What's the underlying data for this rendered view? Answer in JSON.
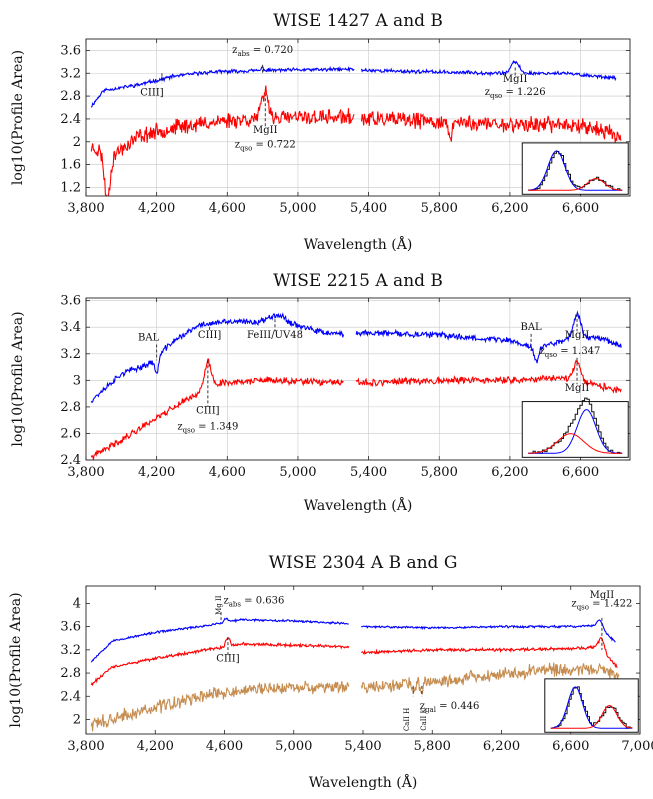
{
  "chart_data": [
    {
      "type": "line",
      "title": "WISE 1427 A and B",
      "xlabel": "Wavelength (Å)",
      "ylabel": "log10(Profile Area)",
      "xlim": [
        3800,
        6880
      ],
      "ylim": [
        1.05,
        3.8
      ],
      "xticks": [
        3800,
        4200,
        4600,
        5000,
        5400,
        5800,
        6200,
        6600
      ],
      "xtick_labels": [
        "3,800",
        "4,200",
        "4,600",
        "5,000",
        "5,400",
        "5,800",
        "6,200",
        "6,600"
      ],
      "yticks": [
        1.2,
        1.6,
        2.0,
        2.4,
        2.8,
        3.2,
        3.6
      ],
      "ytick_labels": [
        "1.2",
        "1.6",
        "2",
        "2.4",
        "2.8",
        "3.2",
        "3.6"
      ],
      "grid": true,
      "gap": [
        5320,
        5360
      ],
      "series": [
        {
          "color": "#0000ff",
          "noise": 0.025,
          "seed": 11,
          "baseline": [
            [
              3830,
              2.62
            ],
            [
              3900,
              2.9
            ],
            [
              4100,
              3.0
            ],
            [
              4300,
              3.15
            ],
            [
              4500,
              3.22
            ],
            [
              4800,
              3.25
            ],
            [
              5300,
              3.27
            ],
            [
              5400,
              3.25
            ],
            [
              5800,
              3.22
            ],
            [
              6200,
              3.2
            ],
            [
              6500,
              3.2
            ],
            [
              6800,
              3.12
            ]
          ],
          "peaks": [
            [
              6230,
              0.2,
              22
            ],
            [
              4800,
              0.05,
              6
            ]
          ]
        },
        {
          "color": "#ff0000",
          "noise": 0.11,
          "seed": 23,
          "baseline": [
            [
              3830,
              1.9
            ],
            [
              3950,
              1.75
            ],
            [
              4100,
              2.1
            ],
            [
              4300,
              2.25
            ],
            [
              4600,
              2.38
            ],
            [
              4900,
              2.42
            ],
            [
              5300,
              2.43
            ],
            [
              5400,
              2.4
            ],
            [
              5800,
              2.35
            ],
            [
              6200,
              2.3
            ],
            [
              6600,
              2.3
            ],
            [
              6830,
              2.1
            ]
          ],
          "peaks": [
            [
              4815,
              0.45,
              20
            ]
          ],
          "dips": [
            [
              3920,
              0.8,
              15
            ],
            [
              5860,
              0.35,
              8
            ]
          ]
        }
      ],
      "annotations": [
        {
          "text": "CIII]",
          "x": 4230,
          "y": 3.02,
          "dx": -10,
          "dy": 12,
          "anchor": "middle",
          "tick_from": 3.2,
          "tick_to": 3.02
        },
        {
          "text": "z_abs = 0.720",
          "x": 4800,
          "y": 3.45,
          "dx": 0,
          "dy": -6,
          "anchor": "middle",
          "tick_from": 3.35,
          "tick_to": 3.2
        },
        {
          "text": "MgII",
          "x": 4815,
          "y": 2.15,
          "dx": 0,
          "dy": 0,
          "anchor": "middle",
          "tick_from": 2.85,
          "tick_to": 2.25
        },
        {
          "text": "z_qso = 0.722",
          "x": 4815,
          "y": 1.9,
          "dx": 0,
          "dy": 0,
          "anchor": "middle"
        },
        {
          "text": "MgII",
          "x": 6230,
          "y": 3.05,
          "dx": 0,
          "dy": 0,
          "anchor": "middle",
          "tick_from": 3.3,
          "tick_to": 3.12
        },
        {
          "text": "z_qso = 1.226",
          "x": 6230,
          "y": 2.82,
          "dx": 0,
          "dy": 0,
          "anchor": "middle"
        }
      ],
      "inset": {
        "x0": 6270,
        "x1": 6870,
        "y0": 1.08,
        "y1": 1.98
      }
    },
    {
      "type": "line",
      "title": "WISE 2215 A and B",
      "xlabel": "Wavelength (Å)",
      "ylabel": "log10(Profile Area)",
      "xlim": [
        3800,
        6880
      ],
      "ylim": [
        2.4,
        3.62
      ],
      "xticks": [
        3800,
        4200,
        4600,
        5000,
        5400,
        5800,
        6200,
        6600
      ],
      "xtick_labels": [
        "3,800",
        "4,200",
        "4,600",
        "5,000",
        "5,400",
        "5,800",
        "6,200",
        "6,600"
      ],
      "yticks": [
        2.4,
        2.6,
        2.8,
        3.0,
        3.2,
        3.4,
        3.6
      ],
      "ytick_labels": [
        "2.4",
        "2.6",
        "2.8",
        "3",
        "3.2",
        "3.4",
        "3.6"
      ],
      "grid": true,
      "gap": [
        5260,
        5330
      ],
      "series": [
        {
          "color": "#0000ff",
          "noise": 0.018,
          "seed": 37,
          "baseline": [
            [
              3830,
              2.85
            ],
            [
              4000,
              3.05
            ],
            [
              4150,
              3.12
            ],
            [
              4300,
              3.3
            ],
            [
              4450,
              3.42
            ],
            [
              4600,
              3.44
            ],
            [
              4800,
              3.44
            ],
            [
              4900,
              3.46
            ],
            [
              5100,
              3.37
            ],
            [
              5260,
              3.34
            ],
            [
              5350,
              3.36
            ],
            [
              5800,
              3.34
            ],
            [
              6200,
              3.3
            ],
            [
              6350,
              3.24
            ],
            [
              6500,
              3.3
            ],
            [
              6700,
              3.33
            ],
            [
              6830,
              3.26
            ]
          ],
          "peaks": [
            [
              6580,
              0.18,
              22
            ],
            [
              4870,
              0.04,
              40
            ]
          ],
          "dips": [
            [
              4200,
              0.12,
              12
            ],
            [
              6350,
              0.1,
              12
            ]
          ]
        },
        {
          "color": "#ff0000",
          "noise": 0.02,
          "seed": 41,
          "baseline": [
            [
              3830,
              2.42
            ],
            [
              4000,
              2.55
            ],
            [
              4200,
              2.72
            ],
            [
              4400,
              2.88
            ],
            [
              4550,
              2.98
            ],
            [
              4800,
              3.0
            ],
            [
              5260,
              2.98
            ],
            [
              5330,
              2.98
            ],
            [
              5800,
              3.0
            ],
            [
              6200,
              3.0
            ],
            [
              6500,
              3.02
            ],
            [
              6830,
              2.92
            ]
          ],
          "peaks": [
            [
              4490,
              0.2,
              18
            ],
            [
              6580,
              0.15,
              20
            ]
          ]
        }
      ],
      "annotations": [
        {
          "text": "BAL",
          "x": 4200,
          "y": 3.3,
          "dx": -8,
          "dy": 0,
          "anchor": "middle",
          "tick_from": 3.27,
          "tick_to": 3.15
        },
        {
          "text": "CIII]",
          "x": 4500,
          "y": 3.32,
          "dx": 0,
          "dy": 0,
          "anchor": "middle",
          "tick_from": 3.44,
          "tick_to": 3.37
        },
        {
          "text": "FeIII/UV48",
          "x": 4870,
          "y": 3.32,
          "dx": 0,
          "dy": 0,
          "anchor": "middle",
          "tick_from": 3.46,
          "tick_to": 3.37
        },
        {
          "text": "BAL",
          "x": 6320,
          "y": 3.38,
          "dx": 0,
          "dy": 0,
          "anchor": "middle",
          "tick_from": 3.35,
          "tick_to": 3.22
        },
        {
          "text": "MgII",
          "x": 6580,
          "y": 3.32,
          "dx": 0,
          "dy": 0,
          "anchor": "middle",
          "tick_from": 3.5,
          "tick_to": 3.37
        },
        {
          "text": "z_qso = 1.347",
          "x": 6540,
          "y": 3.2,
          "dx": 0,
          "dy": 0,
          "anchor": "middle"
        },
        {
          "text": "MgII",
          "x": 6580,
          "y": 2.92,
          "dx": 0,
          "dy": 0,
          "anchor": "middle",
          "tick_from": 3.17,
          "tick_to": 2.97
        },
        {
          "text": "CIII]",
          "x": 4490,
          "y": 2.75,
          "dx": 0,
          "dy": 0,
          "anchor": "middle",
          "tick_from": 3.15,
          "tick_to": 2.8
        },
        {
          "text": "z_qso = 1.349",
          "x": 4490,
          "y": 2.63,
          "dx": 0,
          "dy": 0,
          "anchor": "middle"
        }
      ],
      "inset": {
        "x0": 6270,
        "x1": 6870,
        "y0": 2.42,
        "y1": 2.84
      }
    },
    {
      "type": "line",
      "title": "WISE 2304 A B and G",
      "xlabel": "Wavelength (Å)",
      "ylabel": "log10(Profile Area)",
      "xlim": [
        3800,
        7000
      ],
      "ylim": [
        1.75,
        4.3
      ],
      "xticks": [
        3800,
        4200,
        4600,
        5000,
        5400,
        5800,
        6200,
        6600,
        7000
      ],
      "xtick_labels": [
        "3,800",
        "4,200",
        "4,600",
        "5,000",
        "5,400",
        "5,800",
        "6,200",
        "6,600",
        "7,000"
      ],
      "yticks": [
        2.0,
        2.4,
        2.8,
        3.2,
        3.6,
        4.0
      ],
      "ytick_labels": [
        "2",
        "2.4",
        "2.8",
        "3.2",
        "3.6",
        "4"
      ],
      "grid": false,
      "gap": [
        5320,
        5390
      ],
      "series": [
        {
          "color": "#0000ff",
          "noise": 0.015,
          "seed": 53,
          "baseline": [
            [
              3830,
              3.0
            ],
            [
              3950,
              3.35
            ],
            [
              4200,
              3.5
            ],
            [
              4500,
              3.62
            ],
            [
              4700,
              3.72
            ],
            [
              5000,
              3.7
            ],
            [
              5320,
              3.65
            ],
            [
              5400,
              3.6
            ],
            [
              5800,
              3.58
            ],
            [
              6200,
              3.6
            ],
            [
              6600,
              3.6
            ],
            [
              6760,
              3.62
            ],
            [
              6860,
              3.32
            ]
          ],
          "peaks": [
            [
              6770,
              0.12,
              15
            ],
            [
              4610,
              0.06,
              12
            ]
          ]
        },
        {
          "color": "#ff0000",
          "noise": 0.02,
          "seed": 61,
          "baseline": [
            [
              3830,
              2.6
            ],
            [
              3950,
              2.9
            ],
            [
              4200,
              3.05
            ],
            [
              4500,
              3.2
            ],
            [
              4700,
              3.3
            ],
            [
              5000,
              3.28
            ],
            [
              5320,
              3.25
            ],
            [
              5400,
              3.15
            ],
            [
              5800,
              3.2
            ],
            [
              6200,
              3.2
            ],
            [
              6600,
              3.22
            ],
            [
              6760,
              3.25
            ],
            [
              6870,
              2.9
            ]
          ],
          "peaks": [
            [
              4620,
              0.15,
              12
            ],
            [
              6780,
              0.2,
              15
            ]
          ]
        },
        {
          "color": "#c68d50",
          "noise": 0.09,
          "seed": 73,
          "baseline": [
            [
              3830,
              1.9
            ],
            [
              4000,
              2.05
            ],
            [
              4200,
              2.2
            ],
            [
              4500,
              2.42
            ],
            [
              4700,
              2.5
            ],
            [
              5000,
              2.55
            ],
            [
              5320,
              2.58
            ],
            [
              5400,
              2.55
            ],
            [
              5800,
              2.65
            ],
            [
              6200,
              2.78
            ],
            [
              6600,
              2.88
            ],
            [
              6780,
              2.88
            ],
            [
              6880,
              2.7
            ]
          ],
          "dips": [
            [
              5690,
              0.2,
              6
            ],
            [
              5740,
              0.15,
              6
            ]
          ]
        }
      ],
      "annotations": [
        {
          "text": "Mg II",
          "x": 4580,
          "y": 3.97,
          "dx": 0,
          "dy": 0,
          "anchor": "middle",
          "rotate": true,
          "tick_from": 3.85,
          "tick_to": 3.7
        },
        {
          "text": "z_abs = 0.636",
          "x": 4770,
          "y": 4.0,
          "dx": 0,
          "dy": 0,
          "anchor": "middle"
        },
        {
          "text": "CIII]",
          "x": 4620,
          "y": 3.0,
          "dx": 0,
          "dy": 0,
          "anchor": "middle",
          "tick_from": 3.42,
          "tick_to": 3.1
        },
        {
          "text": "MgII",
          "x": 6780,
          "y": 4.09,
          "dx": 0,
          "dy": 0,
          "anchor": "middle"
        },
        {
          "text": "z_qso = 1.422",
          "x": 6780,
          "y": 3.95,
          "dx": 0,
          "dy": 0,
          "anchor": "middle",
          "tick_from": 3.75,
          "tick_to": 3.2
        },
        {
          "text": "CaII H",
          "x": 5690,
          "y": 2.0,
          "dx": -4,
          "dy": 0,
          "anchor": "middle",
          "rotate": true,
          "tick_from": 2.58,
          "tick_to": 2.4
        },
        {
          "text": "CaII K",
          "x": 5740,
          "y": 2.0,
          "dx": 4,
          "dy": 0,
          "anchor": "middle",
          "rotate": true,
          "tick_from": 2.58,
          "tick_to": 2.4
        },
        {
          "text": "z_gal = 0.446",
          "x": 5900,
          "y": 2.18,
          "dx": 0,
          "dy": 0,
          "anchor": "middle"
        }
      ],
      "inset": {
        "x0": 6450,
        "x1": 6990,
        "y0": 1.78,
        "y1": 2.7
      }
    }
  ]
}
